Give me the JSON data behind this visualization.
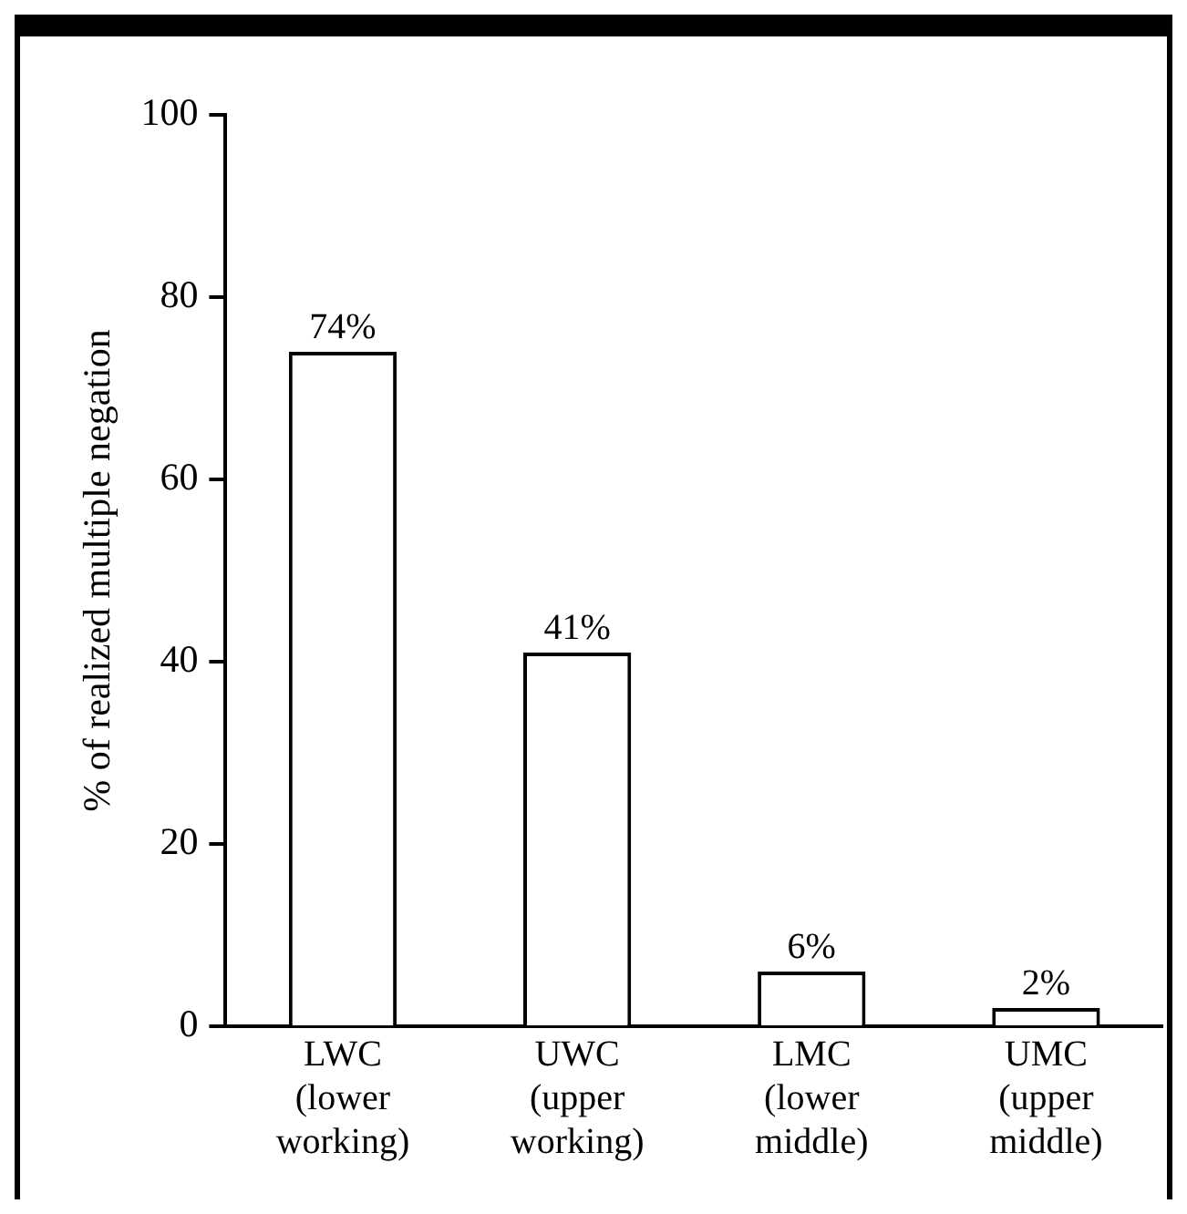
{
  "chart_data": {
    "type": "bar",
    "ylabel": "% of realized multiple negation",
    "categories": [
      "LWC\n(lower\nworking)",
      "UWC\n(upper\nworking)",
      "LMC\n(lower\nmiddle)",
      "UMC\n(upper\nmiddle)"
    ],
    "values": [
      74,
      41,
      6,
      2
    ],
    "value_labels": [
      "74%",
      "41%",
      "6%",
      "2%"
    ],
    "color": "#ffffff",
    "ylim": [
      0,
      100
    ],
    "yticks": [
      0,
      20,
      40,
      60,
      80,
      100
    ],
    "grid": false,
    "legend": false
  }
}
